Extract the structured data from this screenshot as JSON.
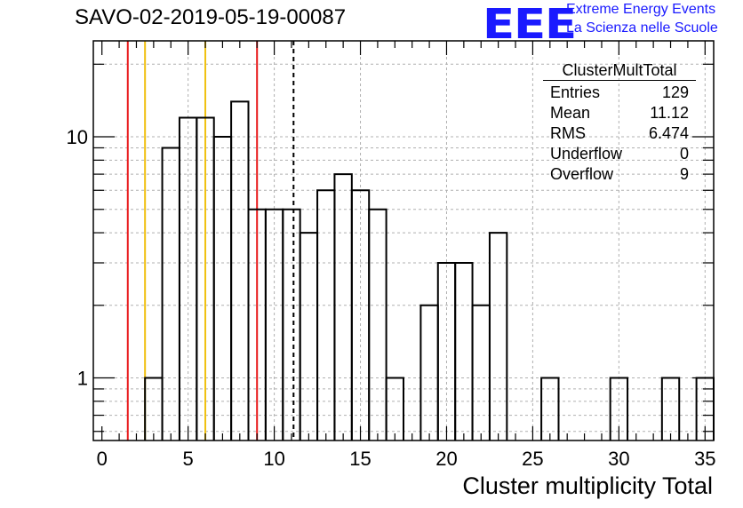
{
  "title": "SAVO-02-2019-05-19-00087",
  "logo": {
    "text": "EEE",
    "line1": "Extreme Energy Events",
    "line2": "La Scienza nelle Scuole",
    "color": "#1a1aff"
  },
  "stats": {
    "name": "ClusterMultTotal",
    "rows": [
      {
        "label": "Entries",
        "value": "129"
      },
      {
        "label": "Mean",
        "value": "11.12"
      },
      {
        "label": "RMS",
        "value": "6.474"
      },
      {
        "label": "Underflow",
        "value": "0"
      },
      {
        "label": "Overflow",
        "value": "9"
      }
    ]
  },
  "chart_data": {
    "type": "histogram",
    "xlabel": "Cluster multiplicity Total",
    "ylabel": "",
    "xlim": [
      -0.5,
      35.5
    ],
    "ylim": [
      0.55,
      25
    ],
    "log_y": true,
    "grid": true,
    "bin_width": 1,
    "bins": [
      {
        "x": 3,
        "y": 1
      },
      {
        "x": 4,
        "y": 9
      },
      {
        "x": 5,
        "y": 12
      },
      {
        "x": 6,
        "y": 12
      },
      {
        "x": 7,
        "y": 10
      },
      {
        "x": 8,
        "y": 14
      },
      {
        "x": 9,
        "y": 5
      },
      {
        "x": 10,
        "y": 5
      },
      {
        "x": 11,
        "y": 5
      },
      {
        "x": 12,
        "y": 4
      },
      {
        "x": 13,
        "y": 6
      },
      {
        "x": 14,
        "y": 7
      },
      {
        "x": 15,
        "y": 6
      },
      {
        "x": 16,
        "y": 5
      },
      {
        "x": 17,
        "y": 1
      },
      {
        "x": 19,
        "y": 2
      },
      {
        "x": 20,
        "y": 3
      },
      {
        "x": 21,
        "y": 3
      },
      {
        "x": 22,
        "y": 2
      },
      {
        "x": 23,
        "y": 4
      },
      {
        "x": 26,
        "y": 1
      },
      {
        "x": 30,
        "y": 1
      },
      {
        "x": 33,
        "y": 1
      },
      {
        "x": 35,
        "y": 1
      }
    ],
    "x_ticks": [
      0,
      5,
      10,
      15,
      20,
      25,
      30,
      35
    ],
    "y_ticks": [
      1,
      10
    ],
    "vertical_lines": [
      {
        "x": 1.5,
        "color": "#e8191b",
        "style": "solid"
      },
      {
        "x": 2.5,
        "color": "#f0c010",
        "style": "solid"
      },
      {
        "x": 6,
        "color": "#f0c010",
        "style": "solid"
      },
      {
        "x": 9,
        "color": "#e8191b",
        "style": "solid"
      },
      {
        "x": 11.12,
        "color": "#000000",
        "style": "dashed"
      }
    ]
  }
}
